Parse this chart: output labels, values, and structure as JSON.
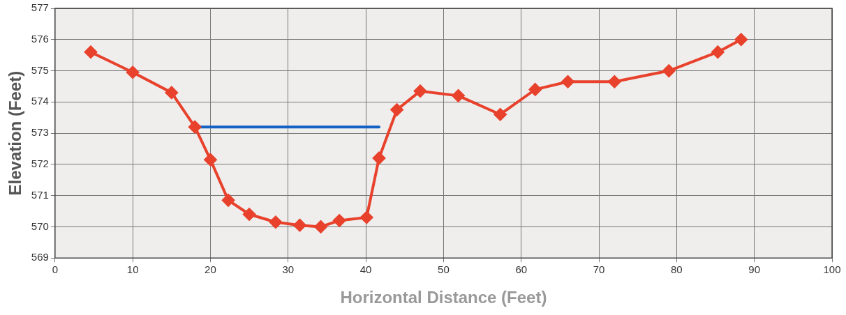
{
  "chart_data": {
    "type": "line",
    "xlabel": "Horizontal Distance (Feet)",
    "ylabel": "Elevation (Feet)",
    "xlim": [
      0,
      100
    ],
    "xticks": [
      0,
      10,
      20,
      30,
      40,
      50,
      60,
      70,
      80,
      90,
      100
    ],
    "ylim": [
      569,
      577
    ],
    "yticks": [
      569,
      570,
      571,
      572,
      573,
      574,
      575,
      576,
      577
    ],
    "grid": true,
    "legend": false,
    "marker": "diamond",
    "line_style": "solid",
    "series": [
      {
        "color": "#e8412c",
        "x": [
          4.6,
          10,
          15,
          18,
          20,
          22.3,
          25,
          28.4,
          31.5,
          34.2,
          36.6,
          40.1,
          41.7,
          44,
          47,
          51.9,
          57.3,
          61.8,
          66,
          72,
          79,
          85.3,
          88.3
        ],
        "values": [
          575.6,
          574.95,
          574.3,
          573.2,
          572.15,
          570.85,
          570.4,
          570.15,
          570.05,
          570.0,
          570.2,
          570.3,
          572.2,
          573.75,
          574.35,
          574.2,
          573.6,
          574.4,
          574.65,
          574.65,
          575.0,
          575.6,
          576.0
        ]
      },
      {
        "color": "#1463c4",
        "marker": "none",
        "x": [
          18.3,
          41.7
        ],
        "values": [
          573.2,
          573.2
        ]
      }
    ]
  }
}
